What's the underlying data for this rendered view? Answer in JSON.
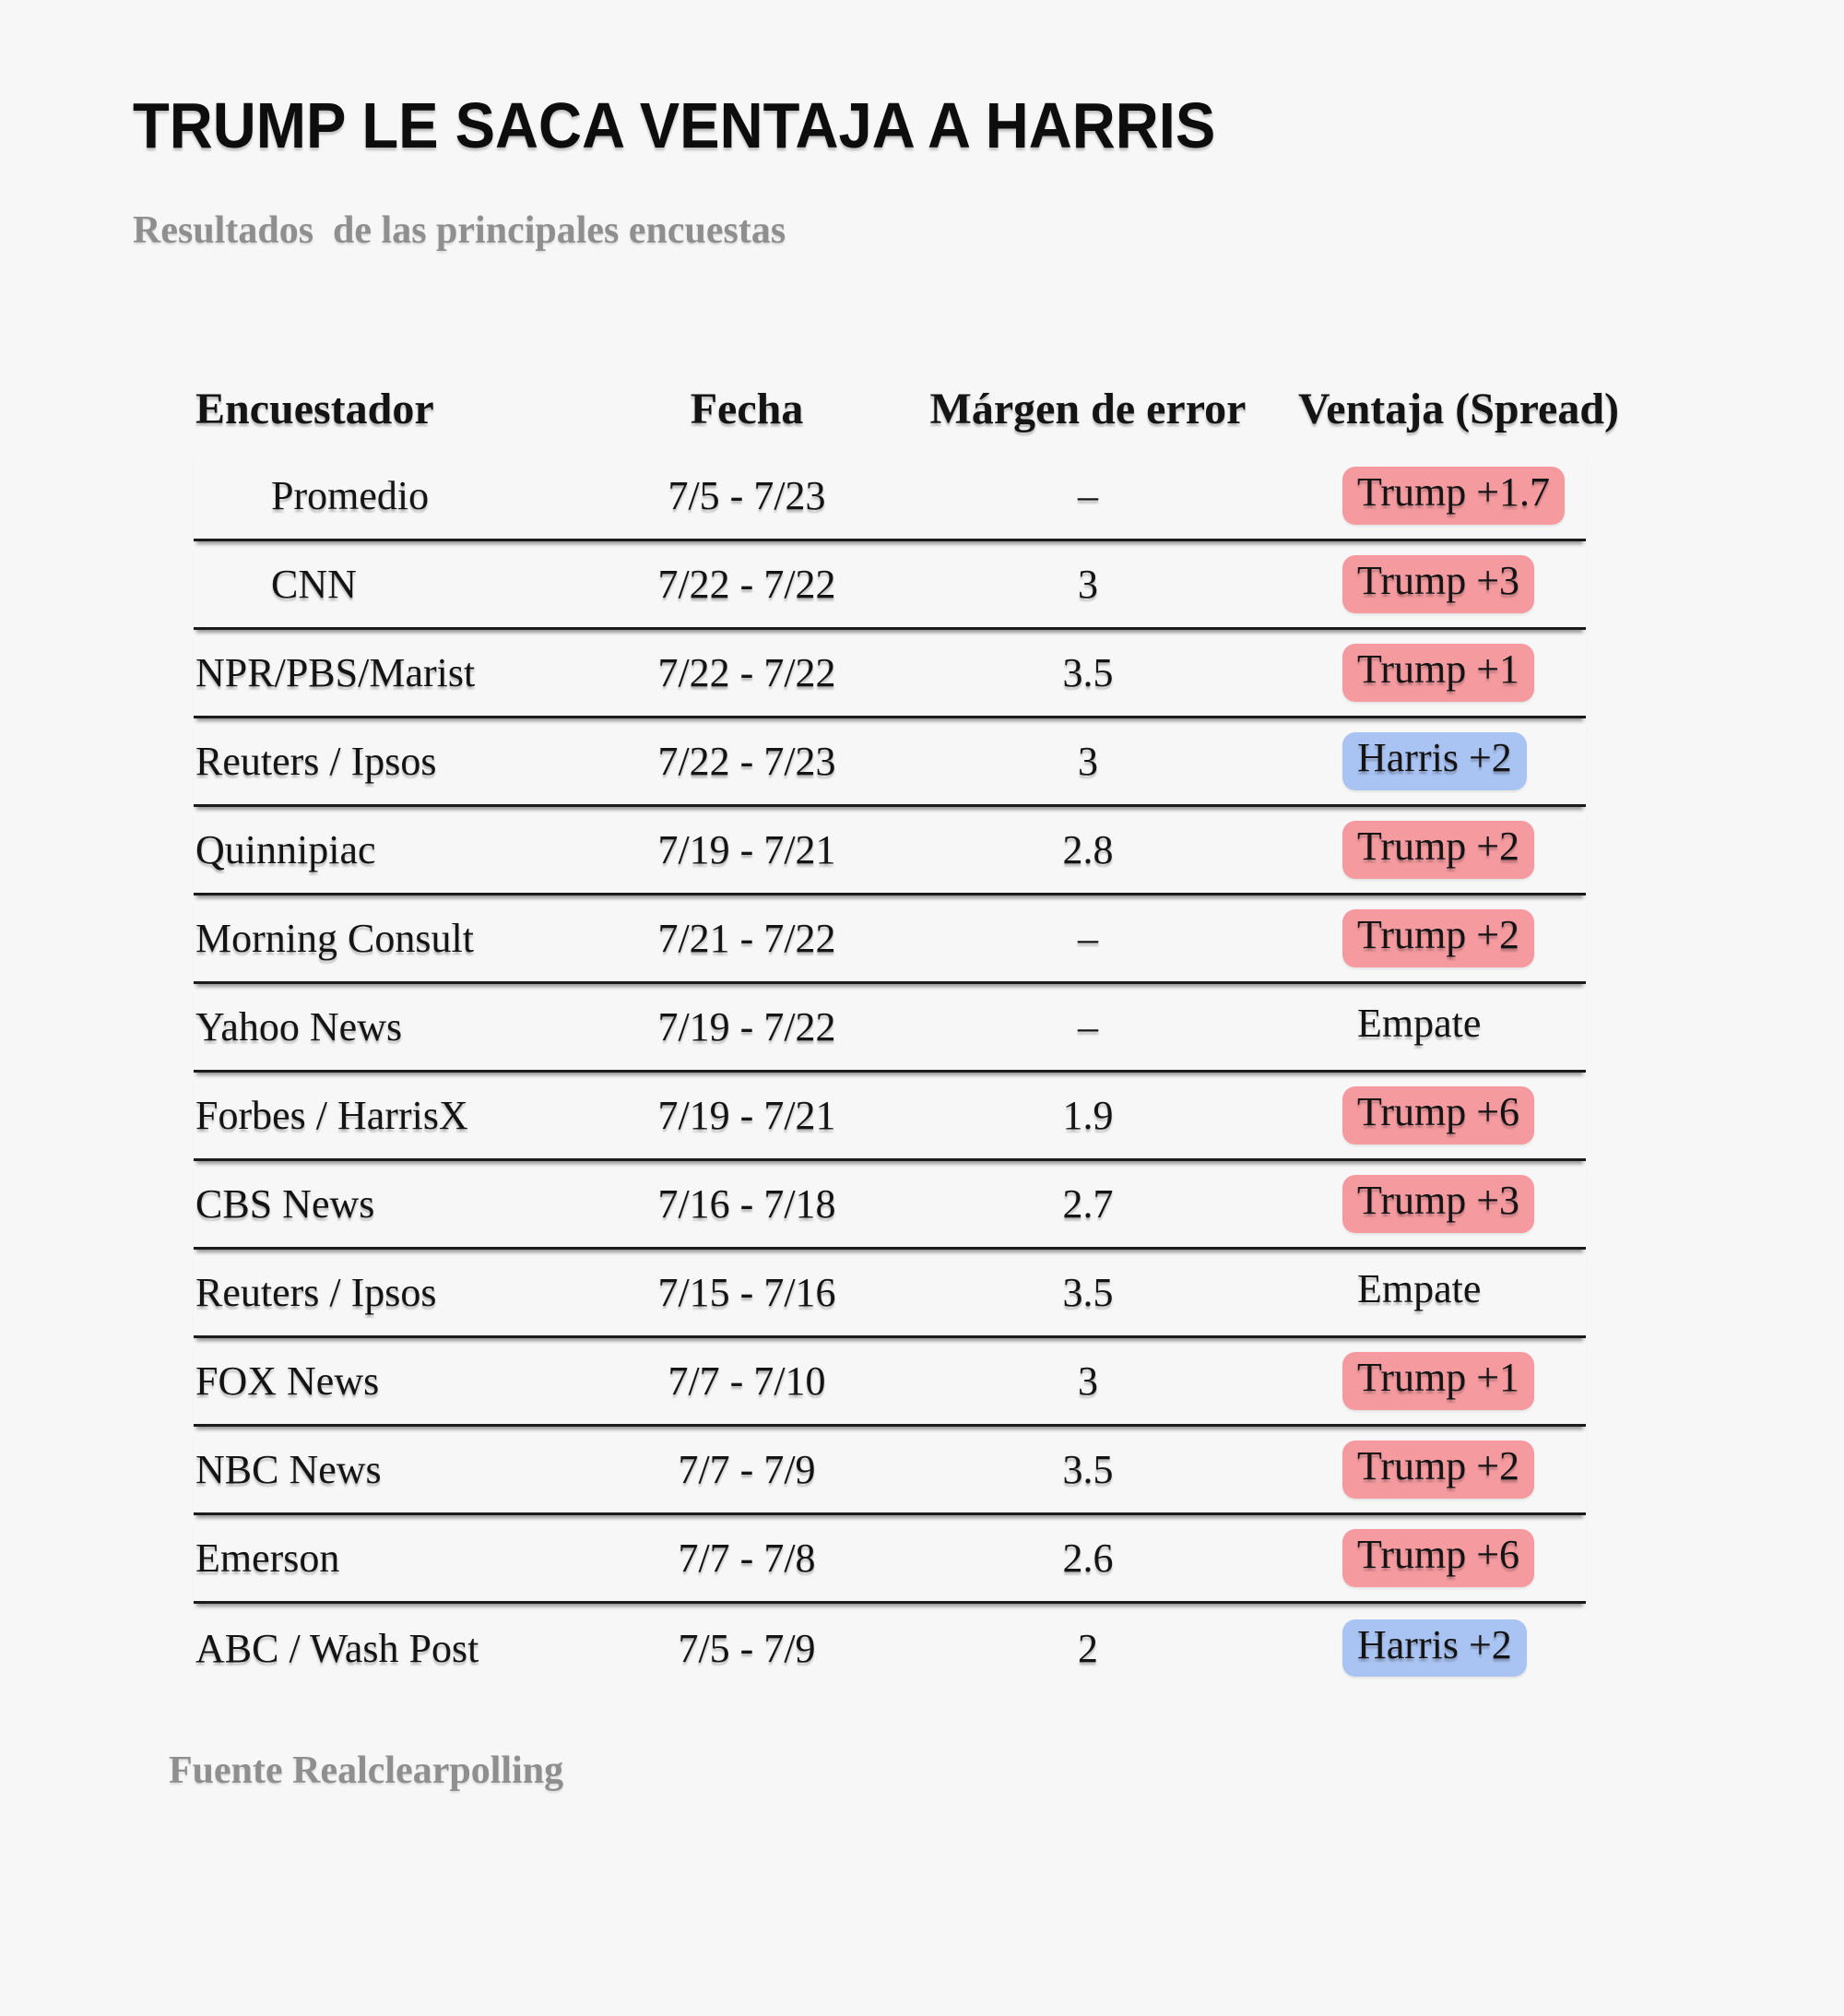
{
  "page": {
    "background": "#f7f7f7"
  },
  "chart_data": {
    "type": "table",
    "title": "TRUMP LE SACA VENTAJA A HARRIS",
    "subtitle": "Resultados  de las principales encuestas",
    "source": "Fuente Realclearpolling",
    "columns": [
      "Encuestador",
      "Fecha",
      "Márgen de error",
      "Ventaja (Spread)"
    ],
    "colors": {
      "trump": "#f59ba0",
      "harris": "#a9c3f2"
    },
    "rows": [
      {
        "pollster": "Promedio",
        "indent": true,
        "date": "7/5 - 7/23",
        "margin_of_error": "–",
        "spread": "Trump +1.7",
        "leader": "trump"
      },
      {
        "pollster": "CNN",
        "indent": true,
        "date": "7/22 - 7/22",
        "margin_of_error": "3",
        "spread": "Trump +3",
        "leader": "trump"
      },
      {
        "pollster": "NPR/PBS/Marist",
        "indent": false,
        "date": "7/22 - 7/22",
        "margin_of_error": "3.5",
        "spread": "Trump +1",
        "leader": "trump"
      },
      {
        "pollster": "Reuters / Ipsos",
        "indent": false,
        "date": "7/22 - 7/23",
        "margin_of_error": "3",
        "spread": "Harris +2",
        "leader": "harris"
      },
      {
        "pollster": "Quinnipiac",
        "indent": false,
        "date": "7/19 - 7/21",
        "margin_of_error": "2.8",
        "spread": "Trump +2",
        "leader": "trump"
      },
      {
        "pollster": "Morning Consult",
        "indent": false,
        "date": "7/21 - 7/22",
        "margin_of_error": "–",
        "spread": "Trump +2",
        "leader": "trump"
      },
      {
        "pollster": "Yahoo News",
        "indent": false,
        "date": "7/19 - 7/22",
        "margin_of_error": "–",
        "spread": "Empate",
        "leader": "empate"
      },
      {
        "pollster": "Forbes / HarrisX",
        "indent": false,
        "date": "7/19 - 7/21",
        "margin_of_error": "1.9",
        "spread": "Trump +6",
        "leader": "trump"
      },
      {
        "pollster": "CBS News",
        "indent": false,
        "date": "7/16 - 7/18",
        "margin_of_error": "2.7",
        "spread": "Trump +3",
        "leader": "trump"
      },
      {
        "pollster": "Reuters / Ipsos",
        "indent": false,
        "date": "7/15 - 7/16",
        "margin_of_error": "3.5",
        "spread": "Empate",
        "leader": "empate"
      },
      {
        "pollster": "FOX News",
        "indent": false,
        "date": "7/7 - 7/10",
        "margin_of_error": "3",
        "spread": "Trump +1",
        "leader": "trump"
      },
      {
        "pollster": "NBC News",
        "indent": false,
        "date": "7/7 - 7/9",
        "margin_of_error": "3.5",
        "spread": "Trump +2",
        "leader": "trump"
      },
      {
        "pollster": "Emerson",
        "indent": false,
        "date": "7/7 - 7/8",
        "margin_of_error": "2.6",
        "spread": "Trump +6",
        "leader": "trump"
      },
      {
        "pollster": "ABC / Wash Post",
        "indent": false,
        "date": "7/5 - 7/9",
        "margin_of_error": "2",
        "spread": "Harris +2",
        "leader": "harris"
      }
    ]
  }
}
